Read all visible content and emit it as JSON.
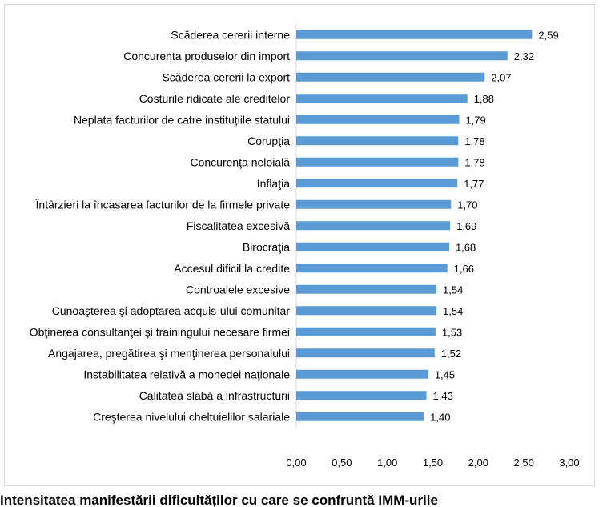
{
  "caption": "Intensitatea manifestării dificultăților cu care se confruntă IMM-urile",
  "chart_data": {
    "type": "bar",
    "orientation": "horizontal",
    "categories": [
      "Scăderea cererii interne",
      "Concurenta produselor din import",
      "Scăderea cererii la export",
      "Costurile ridicate ale creditelor",
      "Neplata facturilor de catre instituțiile statului",
      "Corupţia",
      "Concurenţa neloială",
      "Inflaţia",
      "Întârzieri la încasarea facturilor de la firmele private",
      "Fiscalitatea excesivă",
      "Birocraţia",
      "Accesul dificil la credite",
      "Controalele excesive",
      "Cunoaşterea şi adoptarea acquis-ului comunitar",
      "Obţinerea consultanţei şi trainingului necesare firmei",
      "Angajarea, pregătirea şi menţinerea personalului",
      "Instabilitatea relativă a monedei naţionale",
      "Calitatea slabă a infrastructurii",
      "Creşterea nivelului cheltuielilor salariale"
    ],
    "values": [
      2.59,
      2.32,
      2.07,
      1.88,
      1.79,
      1.78,
      1.78,
      1.77,
      1.7,
      1.69,
      1.68,
      1.66,
      1.54,
      1.54,
      1.53,
      1.52,
      1.45,
      1.43,
      1.4
    ],
    "value_labels": [
      "2,59",
      "2,32",
      "2,07",
      "1,88",
      "1,79",
      "1,78",
      "1,78",
      "1,77",
      "1,70",
      "1,69",
      "1,68",
      "1,66",
      "1,54",
      "1,54",
      "1,53",
      "1,52",
      "1,45",
      "1,43",
      "1,40"
    ],
    "x_ticks": [
      "0,00",
      "0,50",
      "1,00",
      "1,50",
      "2,00",
      "2,50",
      "3,00"
    ],
    "xlim": [
      0,
      3
    ],
    "bar_color": "#5b9bd5",
    "grid": false,
    "legend": "none"
  }
}
